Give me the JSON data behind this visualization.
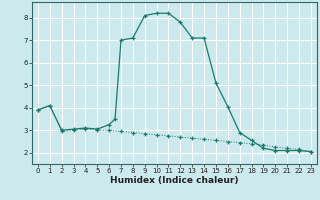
{
  "title": "",
  "xlabel": "Humidex (Indice chaleur)",
  "xlim": [
    -0.5,
    23.5
  ],
  "ylim": [
    1.5,
    8.7
  ],
  "yticks": [
    2,
    3,
    4,
    5,
    6,
    7,
    8
  ],
  "xticks": [
    0,
    1,
    2,
    3,
    4,
    5,
    6,
    7,
    8,
    9,
    10,
    11,
    12,
    13,
    14,
    15,
    16,
    17,
    18,
    19,
    20,
    21,
    22,
    23
  ],
  "bg_color": "#cce9ee",
  "grid_color": "#ffffff",
  "line_color": "#1a7a6e",
  "line1_x": [
    0,
    1,
    2,
    3,
    4,
    5,
    6,
    6.5,
    7,
    8,
    9,
    10,
    11,
    12,
    13,
    14,
    15,
    16,
    17,
    18,
    19,
    20,
    21,
    22,
    23
  ],
  "line1_y": [
    3.9,
    4.1,
    3.0,
    3.05,
    3.1,
    3.05,
    3.25,
    3.5,
    7.0,
    7.1,
    8.1,
    8.2,
    8.2,
    7.8,
    7.1,
    7.1,
    5.1,
    4.05,
    2.9,
    2.55,
    2.2,
    2.1,
    2.1,
    2.1,
    2.05
  ],
  "line2_x": [
    0,
    1,
    2,
    3,
    4,
    5,
    6,
    7,
    8,
    9,
    10,
    11,
    12,
    13,
    14,
    15,
    16,
    17,
    18,
    19,
    20,
    21,
    22,
    23
  ],
  "line2_y": [
    3.9,
    4.1,
    2.95,
    3.0,
    3.05,
    3.0,
    3.0,
    2.95,
    2.9,
    2.85,
    2.8,
    2.75,
    2.7,
    2.65,
    2.6,
    2.55,
    2.5,
    2.45,
    2.4,
    2.35,
    2.25,
    2.2,
    2.15,
    2.05
  ]
}
